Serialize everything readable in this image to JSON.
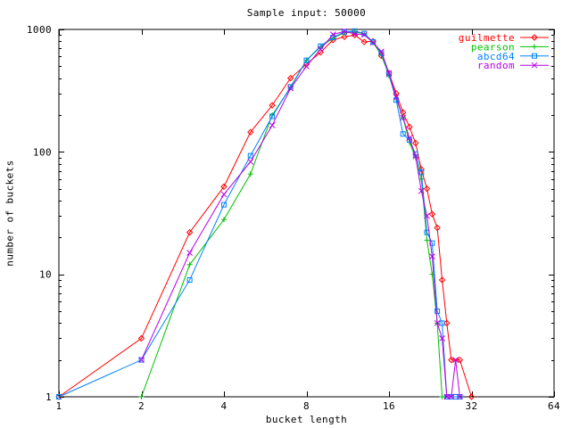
{
  "chart_data": {
    "type": "line",
    "title": "Sample input: 50000",
    "xlabel": "bucket length",
    "ylabel": "number of buckets",
    "x_scale": "log2",
    "y_scale": "log10",
    "xlim": [
      1,
      64
    ],
    "ylim": [
      1,
      1000
    ],
    "x_ticks": [
      1,
      2,
      4,
      8,
      16,
      32,
      64
    ],
    "y_ticks": [
      1,
      10,
      100,
      1000
    ],
    "y_minor_ticks_per_decade": [
      2,
      3,
      4,
      5,
      6,
      7,
      8,
      9
    ],
    "grid": false,
    "legend_position": "top-right-inside",
    "axis_color": "#000000",
    "background_color": "#ffffff",
    "series": [
      {
        "name": "guilmette",
        "color": "#ff0000",
        "marker": "diamond",
        "points": [
          [
            1,
            1
          ],
          [
            2,
            3
          ],
          [
            3,
            22
          ],
          [
            4,
            52
          ],
          [
            5,
            145
          ],
          [
            6,
            240
          ],
          [
            7,
            400
          ],
          [
            8,
            520
          ],
          [
            9,
            650
          ],
          [
            10,
            820
          ],
          [
            11,
            870
          ],
          [
            12,
            900
          ],
          [
            13,
            790
          ],
          [
            14,
            800
          ],
          [
            15,
            610
          ],
          [
            16,
            440
          ],
          [
            17,
            300
          ],
          [
            18,
            210
          ],
          [
            19,
            160
          ],
          [
            20,
            118
          ],
          [
            21,
            72
          ],
          [
            22,
            50
          ],
          [
            23,
            31
          ],
          [
            24,
            24
          ],
          [
            25,
            9
          ],
          [
            26,
            4
          ],
          [
            27,
            2
          ],
          [
            29,
            2
          ],
          [
            32,
            1
          ]
        ]
      },
      {
        "name": "pearson",
        "color": "#00c000",
        "marker": "plus",
        "points": [
          [
            2,
            1
          ],
          [
            3,
            12
          ],
          [
            4,
            28
          ],
          [
            5,
            66
          ],
          [
            6,
            200
          ],
          [
            7,
            335
          ],
          [
            8,
            560
          ],
          [
            9,
            720
          ],
          [
            10,
            850
          ],
          [
            11,
            940
          ],
          [
            12,
            955
          ],
          [
            13,
            920
          ],
          [
            14,
            780
          ],
          [
            15,
            620
          ],
          [
            16,
            420
          ],
          [
            17,
            270
          ],
          [
            18,
            190
          ],
          [
            19,
            120
          ],
          [
            20,
            90
          ],
          [
            21,
            60
          ],
          [
            22,
            19
          ],
          [
            23,
            10
          ],
          [
            24,
            4
          ],
          [
            25,
            1
          ]
        ]
      },
      {
        "name": "abcd64",
        "color": "#0080ff",
        "marker": "square",
        "points": [
          [
            1,
            1
          ],
          [
            2,
            2
          ],
          [
            3,
            9
          ],
          [
            4,
            37
          ],
          [
            5,
            93
          ],
          [
            6,
            195
          ],
          [
            7,
            340
          ],
          [
            8,
            560
          ],
          [
            9,
            730
          ],
          [
            10,
            860
          ],
          [
            11,
            955
          ],
          [
            12,
            970
          ],
          [
            13,
            925
          ],
          [
            14,
            790
          ],
          [
            15,
            640
          ],
          [
            16,
            430
          ],
          [
            17,
            265
          ],
          [
            18,
            140
          ],
          [
            19,
            125
          ],
          [
            20,
            96
          ],
          [
            21,
            68
          ],
          [
            22,
            22
          ],
          [
            23,
            18
          ],
          [
            24,
            5
          ],
          [
            25,
            4
          ],
          [
            26,
            1
          ],
          [
            27,
            1
          ],
          [
            28,
            1
          ],
          [
            29,
            1
          ]
        ]
      },
      {
        "name": "random",
        "color": "#b800e6",
        "marker": "cross",
        "points": [
          [
            2,
            2
          ],
          [
            3,
            15
          ],
          [
            4,
            45
          ],
          [
            5,
            83
          ],
          [
            6,
            165
          ],
          [
            7,
            330
          ],
          [
            8,
            500
          ],
          [
            9,
            690
          ],
          [
            10,
            910
          ],
          [
            11,
            965
          ],
          [
            12,
            920
          ],
          [
            13,
            905
          ],
          [
            14,
            780
          ],
          [
            15,
            660
          ],
          [
            16,
            440
          ],
          [
            17,
            280
          ],
          [
            18,
            190
          ],
          [
            19,
            130
          ],
          [
            20,
            92
          ],
          [
            21,
            48
          ],
          [
            22,
            30
          ],
          [
            23,
            14
          ],
          [
            24,
            4
          ],
          [
            25,
            3
          ],
          [
            26,
            1
          ],
          [
            27,
            1
          ],
          [
            28,
            2
          ],
          [
            29,
            1
          ]
        ]
      }
    ]
  }
}
